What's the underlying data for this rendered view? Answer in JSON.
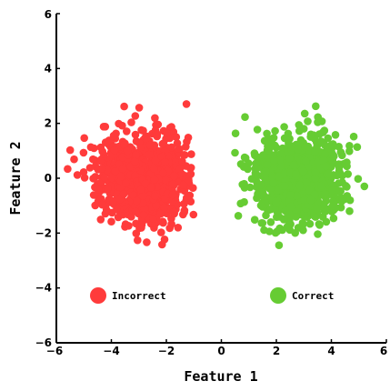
{
  "chart_data": {
    "type": "scatter",
    "title": "",
    "xlabel": "Feature 1",
    "ylabel": "Feature 2",
    "xlim": [
      -6,
      6
    ],
    "ylim": [
      -6,
      6
    ],
    "xticks": [
      "−6",
      "−4",
      "−2",
      "0",
      "2",
      "4",
      "6"
    ],
    "yticks": [
      "−6",
      "−4",
      "−2",
      "0",
      "2",
      "4",
      "6"
    ],
    "grid": false,
    "legend_position": "bottom",
    "series": [
      {
        "name": "Incorrect",
        "color": "#ff3b3b",
        "center": [
          -2.8,
          0.0
        ],
        "spread": [
          0.85,
          0.8
        ],
        "x_range": [
          -5.7,
          -1.0
        ],
        "y_range": [
          -2.5,
          2.9
        ],
        "count": 900,
        "seed": 7
      },
      {
        "name": "Correct",
        "color": "#66cc33",
        "center": [
          2.8,
          0.0
        ],
        "spread": [
          0.85,
          0.8
        ],
        "x_range": [
          0.2,
          5.5
        ],
        "y_range": [
          -2.7,
          3.2
        ],
        "count": 900,
        "seed": 19
      }
    ],
    "legend": [
      {
        "label": "Incorrect",
        "color": "#ff3b3b"
      },
      {
        "label": "Correct",
        "color": "#66cc33"
      }
    ]
  }
}
